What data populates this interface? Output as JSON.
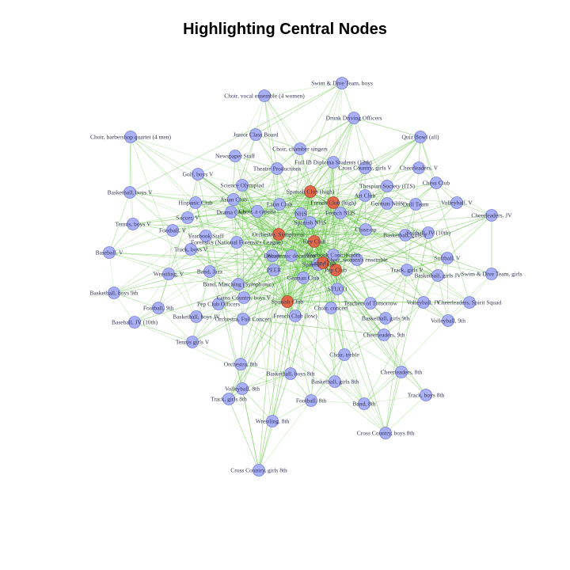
{
  "title": "Highlighting Central Nodes",
  "colors": {
    "node": "#aab0f6",
    "central_node": "#e0684a",
    "edge": "#5cc23c",
    "label": "#333355"
  },
  "nodes": [
    {
      "label": "Swim & Dive Team, boys",
      "central": false
    },
    {
      "label": "Choir, vocal ensemble (4 women)",
      "central": false
    },
    {
      "label": "Drunk Driving Officers",
      "central": false
    },
    {
      "label": "Junior Class Board",
      "central": false
    },
    {
      "label": "Choir, barbershop quartet (4 men)",
      "central": false
    },
    {
      "label": "Choir, chamber singers",
      "central": false
    },
    {
      "label": "Quiz Bowl (all)",
      "central": false
    },
    {
      "label": "Newspaper Staff",
      "central": false
    },
    {
      "label": "Full IB Diploma Students (12th)",
      "central": false
    },
    {
      "label": "Theatre Productions",
      "central": false
    },
    {
      "label": "Cross Country, girls V",
      "central": false
    },
    {
      "label": "Cheerleaders, V",
      "central": false
    },
    {
      "label": "Golf, boys V",
      "central": false
    },
    {
      "label": "Science Olympiad",
      "central": false
    },
    {
      "label": "Thespian Society (ITS)",
      "central": false
    },
    {
      "label": "Chess Club",
      "central": false
    },
    {
      "label": "Basketball, boys V",
      "central": false
    },
    {
      "label": "Spanish Club (high)",
      "central": true
    },
    {
      "label": "Art Club",
      "central": false
    },
    {
      "label": "Hispanic Club",
      "central": false
    },
    {
      "label": "Asian Club",
      "central": false
    },
    {
      "label": "Latin Club",
      "central": false
    },
    {
      "label": "French Club (high)",
      "central": true
    },
    {
      "label": "German NHS",
      "central": false
    },
    {
      "label": "Drill Team",
      "central": false
    },
    {
      "label": "Volleyball, V",
      "central": false
    },
    {
      "label": "Drama Club",
      "central": false
    },
    {
      "label": "Choir, a capella",
      "central": false
    },
    {
      "label": "Spanish NHS",
      "central": false
    },
    {
      "label": "French NHS",
      "central": false
    },
    {
      "label": "Cheerleaders, JV",
      "central": false
    },
    {
      "label": "Soccer, V",
      "central": false
    },
    {
      "label": "Tennis, boys V",
      "central": false
    },
    {
      "label": "Football, V",
      "central": false
    },
    {
      "label": "Close-up",
      "central": false
    },
    {
      "label": "Basketball, girls V",
      "central": false
    },
    {
      "label": "Softball, JV (10th)",
      "central": false
    },
    {
      "label": "Yearbook Staff",
      "central": false
    },
    {
      "label": "Orchestra, Symphonic",
      "central": true
    },
    {
      "label": "Forensics (National Forensics League)",
      "central": false
    },
    {
      "label": "Key Club",
      "central": true
    },
    {
      "label": "NHS",
      "central": false
    },
    {
      "label": "Baseball, V",
      "central": false
    },
    {
      "label": "Track, boys V",
      "central": false
    },
    {
      "label": "Debate",
      "central": false
    },
    {
      "label": "Academic decathlon",
      "central": false
    },
    {
      "label": "Spanish Club",
      "central": false
    },
    {
      "label": "Yearbook Contributors",
      "central": false
    },
    {
      "label": "Softball, V",
      "central": false
    },
    {
      "label": "Choir, women's ensemble",
      "central": false
    },
    {
      "label": "Latin Club",
      "central": true
    },
    {
      "label": "Band, Jazz",
      "central": false
    },
    {
      "label": "PEER",
      "central": false
    },
    {
      "label": "Pep Club",
      "central": true
    },
    {
      "label": "Wrestling, V",
      "central": false
    },
    {
      "label": "Track, girls V",
      "central": false
    },
    {
      "label": "Swim & Dive Team, girls",
      "central": false
    },
    {
      "label": "German Club",
      "central": false
    },
    {
      "label": "Basketball, girls JV",
      "central": false
    },
    {
      "label": "Band, Marching (Symphonic)",
      "central": false
    },
    {
      "label": "Basketball, boys 9th",
      "central": false
    },
    {
      "label": "STUCO",
      "central": false
    },
    {
      "label": "Cross Country, boys V",
      "central": false
    },
    {
      "label": "Spanish Club",
      "central": true
    },
    {
      "label": "Pep Club Officers",
      "central": false
    },
    {
      "label": "Teachers of Tomorrow",
      "central": false
    },
    {
      "label": "Volleyball, JV",
      "central": false
    },
    {
      "label": "Cheerleaders, Spirit Squad",
      "central": false
    },
    {
      "label": "Football, 9th",
      "central": false
    },
    {
      "label": "Choir, concert",
      "central": false
    },
    {
      "label": "French Club (low)",
      "central": false
    },
    {
      "label": "Basketball, boys JV",
      "central": false
    },
    {
      "label": "Baseball, JV (10th)",
      "central": false
    },
    {
      "label": "Orchestra, Full Concert",
      "central": false
    },
    {
      "label": "Basketball, girls 9th",
      "central": false
    },
    {
      "label": "Volleyball, 9th",
      "central": false
    },
    {
      "label": "Cheerleaders, 9th",
      "central": false
    },
    {
      "label": "Tennis girls V",
      "central": false
    },
    {
      "label": "Choir, treble",
      "central": false
    },
    {
      "label": "Orchestra, 8th",
      "central": false
    },
    {
      "label": "Basketball, boys 8th",
      "central": false
    },
    {
      "label": "Cheerleaders, 8th",
      "central": false
    },
    {
      "label": "Basketball, girls 8th",
      "central": false
    },
    {
      "label": "Volleyball, 8th",
      "central": false
    },
    {
      "label": "Track, boys 8th",
      "central": false
    },
    {
      "label": "Track, girls 8th",
      "central": false
    },
    {
      "label": "Football, 8th",
      "central": false
    },
    {
      "label": "Band, 8th",
      "central": false
    },
    {
      "label": "Wrestling, 8th",
      "central": false
    },
    {
      "label": "Cross Country, boys 8th",
      "central": false
    },
    {
      "label": "Cross Country, girls 8th",
      "central": false
    }
  ]
}
